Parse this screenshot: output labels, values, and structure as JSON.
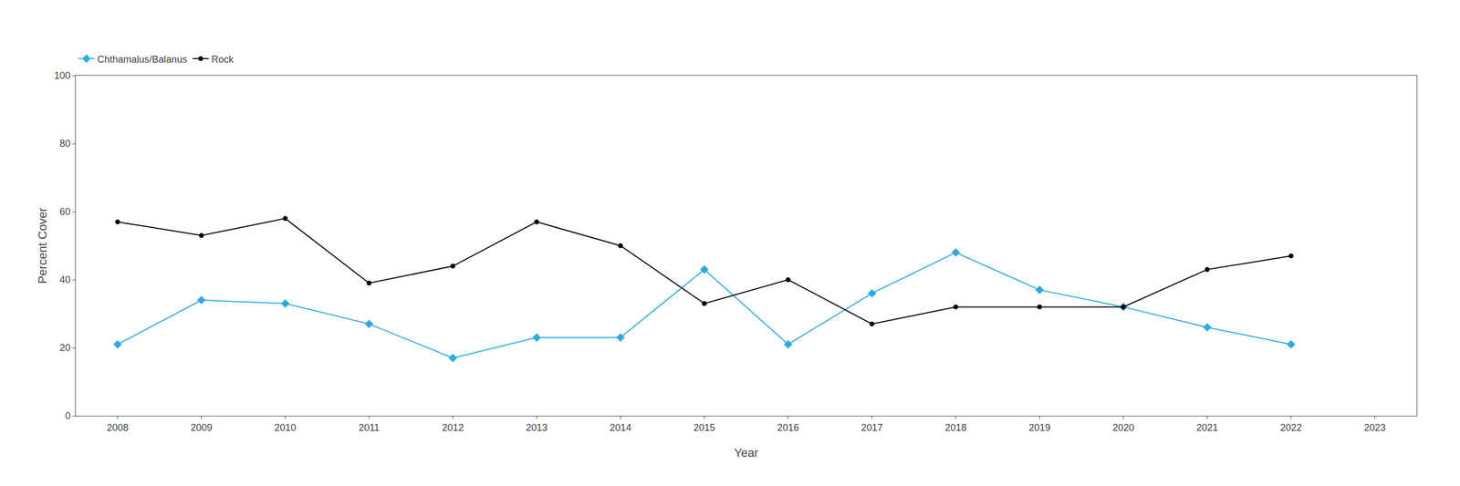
{
  "chart_data": {
    "type": "line",
    "x": [
      2008,
      2009,
      2010,
      2011,
      2012,
      2013,
      2014,
      2015,
      2016,
      2017,
      2018,
      2019,
      2020,
      2021,
      2022
    ],
    "series": [
      {
        "name": "Chthamalus/Balanus",
        "color": "#29ABE2",
        "marker": "diamond",
        "line_style": "solid",
        "values": [
          21,
          34,
          33,
          27,
          17,
          23,
          23,
          43,
          21,
          36,
          48,
          37,
          32,
          26,
          21
        ]
      },
      {
        "name": "Rock",
        "color": "#000000",
        "marker": "circle",
        "line_style": "solid",
        "values": [
          57,
          53,
          58,
          39,
          44,
          57,
          50,
          33,
          40,
          27,
          32,
          32,
          32,
          43,
          47
        ]
      }
    ],
    "xlabel": "Year",
    "ylabel": "Percent Cover",
    "xlim": [
      2007.5,
      2023.5
    ],
    "xticks": [
      2008,
      2009,
      2010,
      2011,
      2012,
      2013,
      2014,
      2015,
      2016,
      2017,
      2018,
      2019,
      2020,
      2021,
      2022,
      2023
    ],
    "ylim": [
      0,
      100
    ],
    "yticks": [
      0,
      20,
      40,
      60,
      80,
      100
    ],
    "grid": false,
    "legend": "top left"
  }
}
